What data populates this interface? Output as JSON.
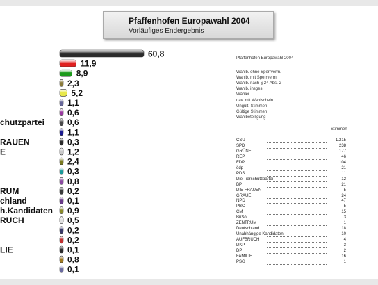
{
  "header": {
    "title": "Pfaffenhofen Europawahl 2004",
    "subtitle": "Vorläufiges Endergebnis"
  },
  "chart_data": {
    "type": "bar",
    "orientation": "horizontal",
    "visible_category_labels": [
      "chutzpartei",
      "RAUEN",
      "E",
      "RUM",
      "chland",
      "h.Kandidaten",
      "RUCH",
      "LIE"
    ],
    "series": [
      {
        "values": [
          60.8,
          11.9,
          8.9,
          2.3,
          5.2,
          1.1,
          0.6,
          0.6,
          1.1,
          0.3,
          1.2,
          2.4,
          0.3,
          0.8,
          0.2,
          0.1,
          0.9,
          0.5,
          0.2,
          0.2,
          0.1,
          0.8,
          0.1
        ],
        "labels": [
          "60,8",
          "11,9",
          "8,9",
          "2,3",
          "5,2",
          "1,1",
          "0,6",
          "0,6",
          "1,1",
          "0,3",
          "1,2",
          "2,4",
          "0,3",
          "0,8",
          "0,2",
          "0,1",
          "0,9",
          "0,5",
          "0,2",
          "0,2",
          "0,1",
          "0,8",
          "0,1"
        ],
        "colors": [
          "#2b2b2b",
          "#e02020",
          "#1a9a1a",
          "#8a7a3a",
          "#e8e84a",
          "#666699",
          "#9a3aa0",
          "#4a4a4a",
          "#1a1a90",
          "#2a2a2a",
          "#c8c8c8",
          "#7a7a20",
          "#1a9a9a",
          "#8a4aa0",
          "#3a3a3a",
          "#6a3a8a",
          "#8a8a2a",
          "#e0e0e0",
          "#3a3a6a",
          "#c03030",
          "#2a2a2a",
          "#a07a20",
          "#6a6aa0"
        ]
      }
    ],
    "xlim": [
      0,
      60.8
    ],
    "grid": false,
    "legend": "none"
  },
  "info": {
    "title": "Pfaffenhofen Europawahl 2004",
    "labels": [
      "Wahlb. ohne Sperrverm.",
      "Wahlb. mit Sperrverm.",
      "Wahlb. nach § 24 Abs. 2",
      "Wahlb. insges.",
      "Wähler",
      "dav. mit Wahlschein",
      "Ungült. Stimmen",
      "Gültige Stimmen",
      "Wahlbeteiligung"
    ]
  },
  "results_table": {
    "column_header": "Stimmen",
    "rows": [
      {
        "party": "CSU",
        "votes": "1.215"
      },
      {
        "party": "SPD",
        "votes": "238"
      },
      {
        "party": "GRÜNE",
        "votes": "177"
      },
      {
        "party": "REP",
        "votes": "46"
      },
      {
        "party": "FDP",
        "votes": "104"
      },
      {
        "party": "ödp",
        "votes": "21"
      },
      {
        "party": "PDS",
        "votes": "11"
      },
      {
        "party": "Die Tierschutzpartei",
        "votes": "12"
      },
      {
        "party": "BP",
        "votes": "21"
      },
      {
        "party": "DIE FRAUEN",
        "votes": "5"
      },
      {
        "party": "GRAUE",
        "votes": "24"
      },
      {
        "party": "NPD",
        "votes": "47"
      },
      {
        "party": "PBC",
        "votes": "5"
      },
      {
        "party": "CM",
        "votes": "15"
      },
      {
        "party": "BüSo",
        "votes": "3"
      },
      {
        "party": "ZENTRUM",
        "votes": "1"
      },
      {
        "party": "Deutschland",
        "votes": "18"
      },
      {
        "party": "Unabhängige Kandidaten",
        "votes": "10"
      },
      {
        "party": "AUFBRUCH",
        "votes": "4"
      },
      {
        "party": "DKP",
        "votes": "3"
      },
      {
        "party": "DP",
        "votes": "2"
      },
      {
        "party": "FAMILIE",
        "votes": "16"
      },
      {
        "party": "PSG",
        "votes": "1"
      }
    ]
  }
}
